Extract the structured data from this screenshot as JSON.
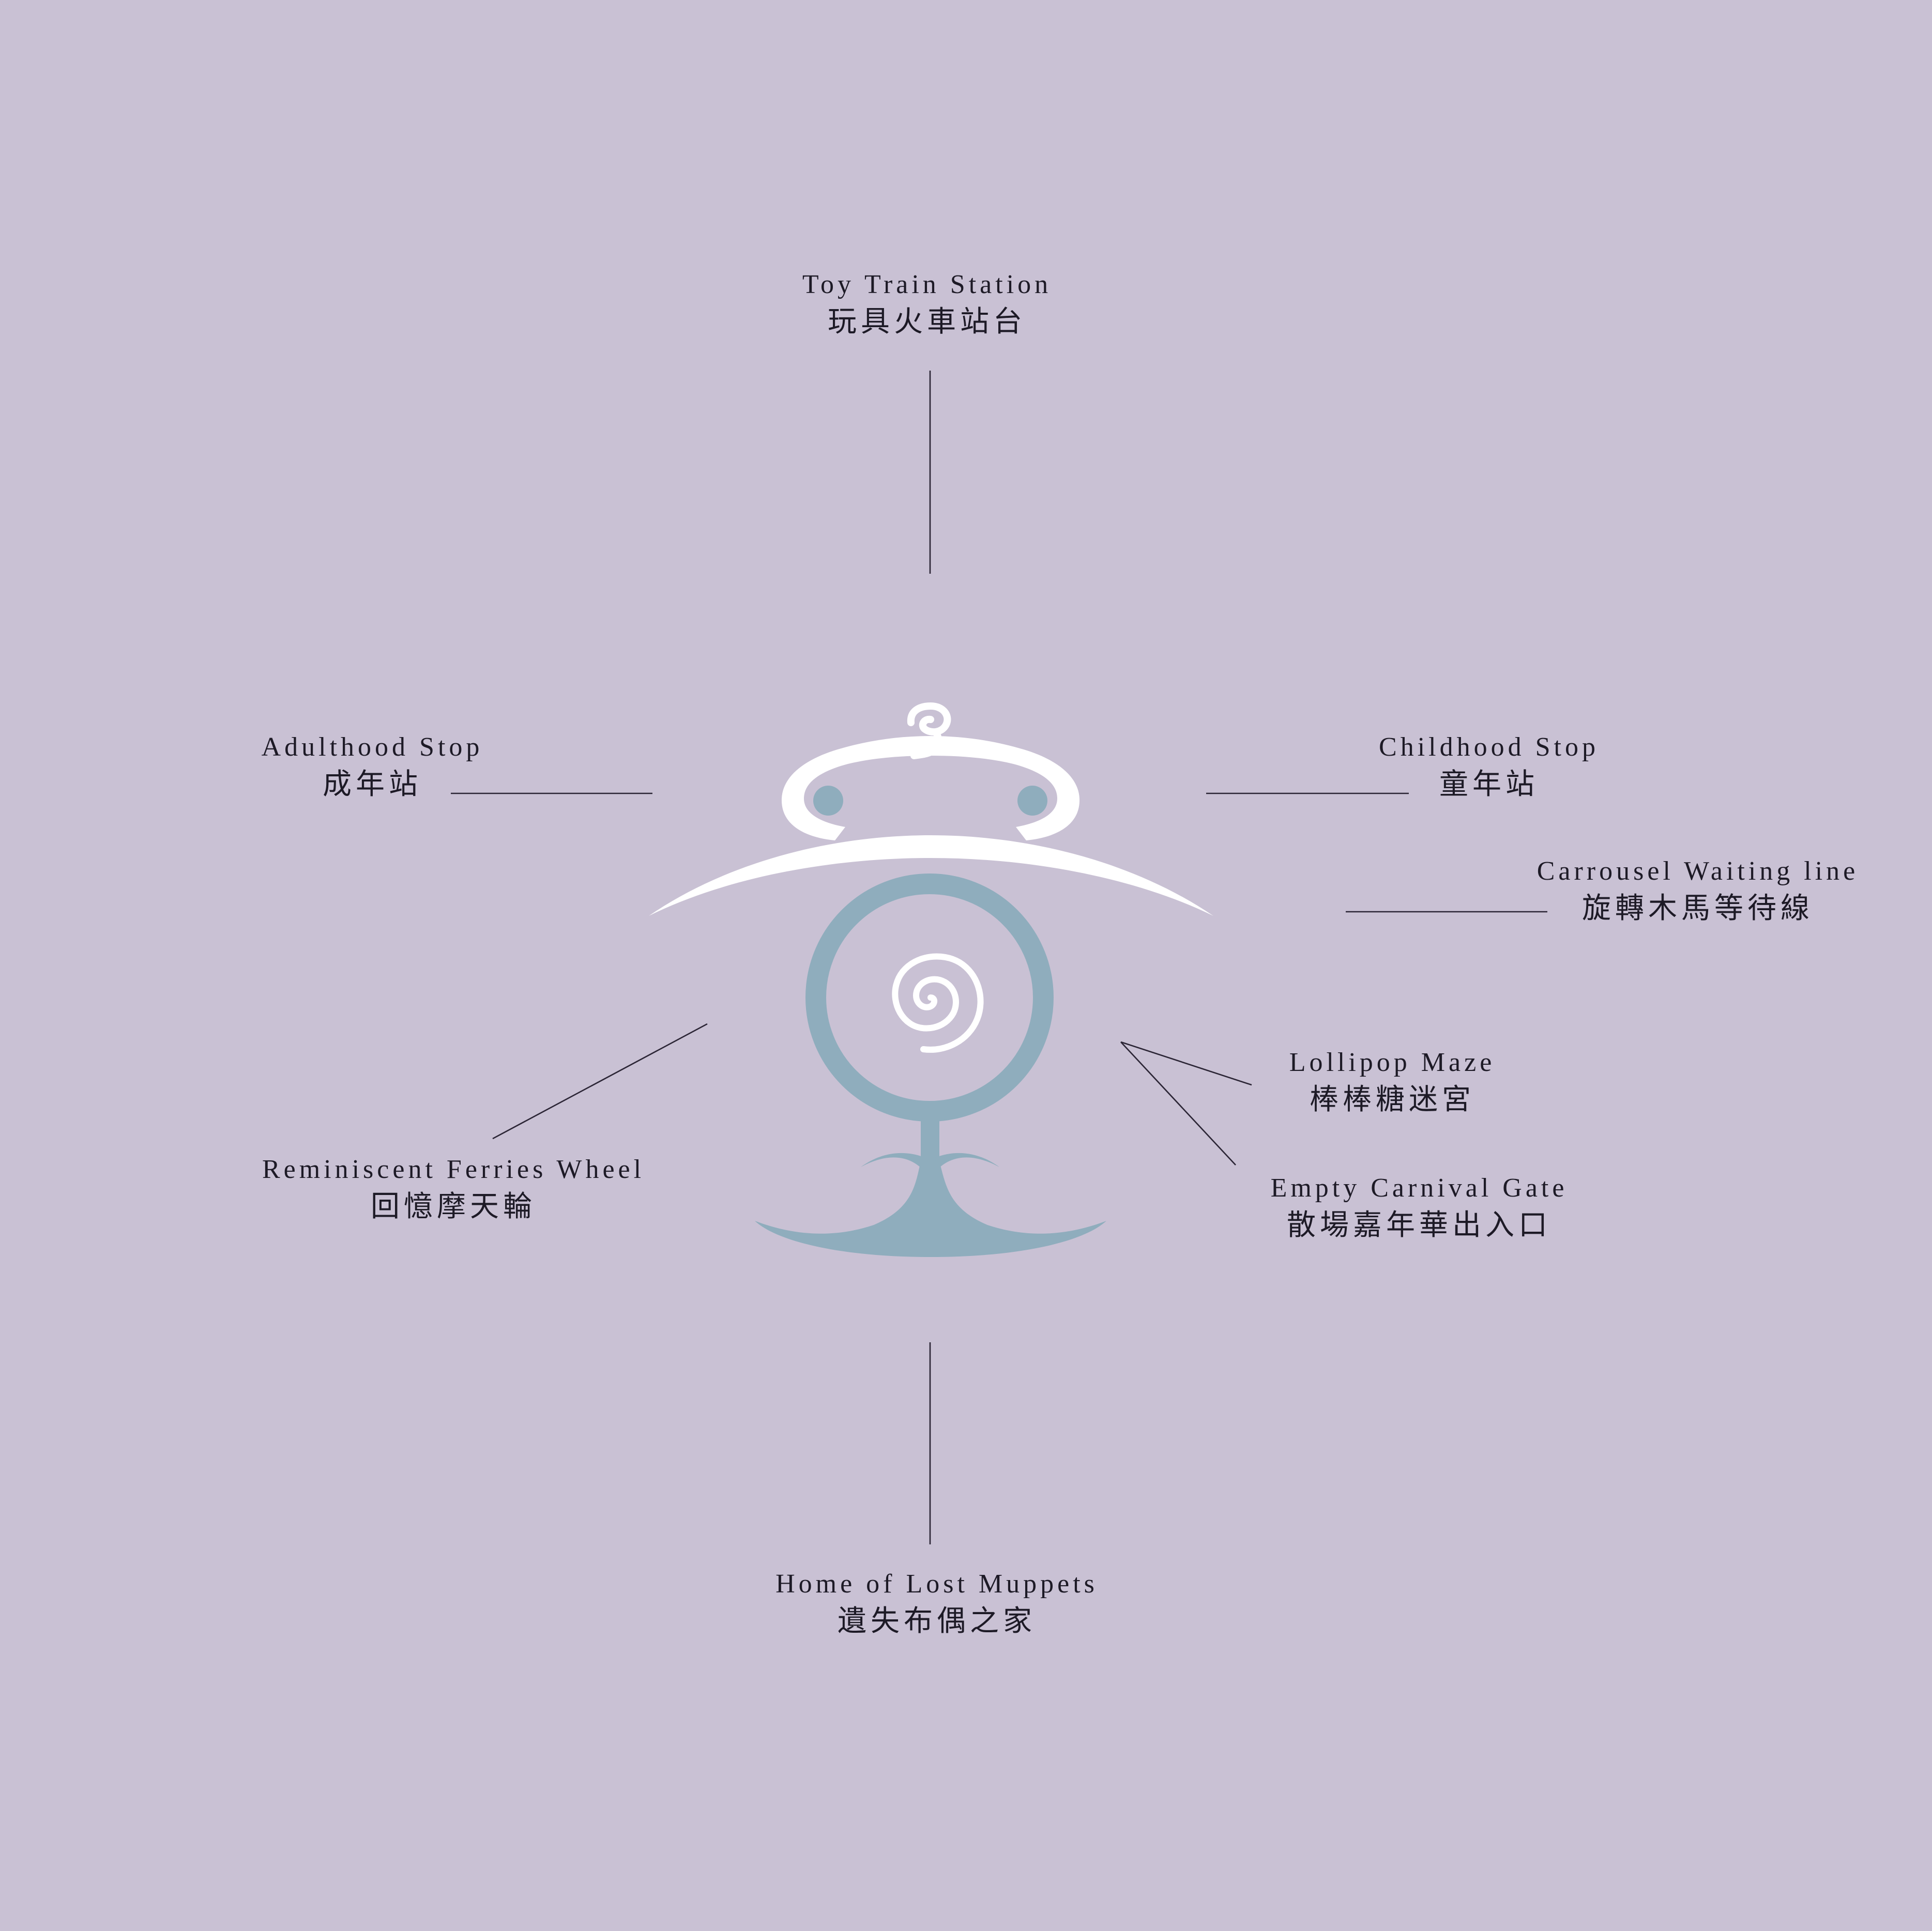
{
  "colors": {
    "background": "#c9c1d4",
    "lantern_head": "#ffffff",
    "lantern_body": "#8fadbd",
    "text": "#1d1a26",
    "leader_line": "#2b2535"
  },
  "emblem": {
    "name": "carnival-lantern-emblem"
  },
  "locations": {
    "toy_train_station": {
      "en": "Toy Train Station",
      "zh": "玩具火車站台"
    },
    "adulthood_stop": {
      "en": "Adulthood Stop",
      "zh": "成年站"
    },
    "childhood_stop": {
      "en": "Childhood Stop",
      "zh": "童年站"
    },
    "carrousel_waiting_line": {
      "en": "Carrousel Waiting line",
      "zh": "旋轉木馬等待線"
    },
    "lollipop_maze": {
      "en": "Lollipop Maze",
      "zh": "棒棒糖迷宮"
    },
    "empty_carnival_gate": {
      "en": "Empty Carnival Gate",
      "zh": "散場嘉年華出入口"
    },
    "reminiscent_ferries_wheel": {
      "en": "Reminiscent Ferries Wheel",
      "zh": "回憶摩天輪"
    },
    "home_of_lost_muppets": {
      "en": "Home of Lost Muppets",
      "zh": "遺失布偶之家"
    }
  }
}
